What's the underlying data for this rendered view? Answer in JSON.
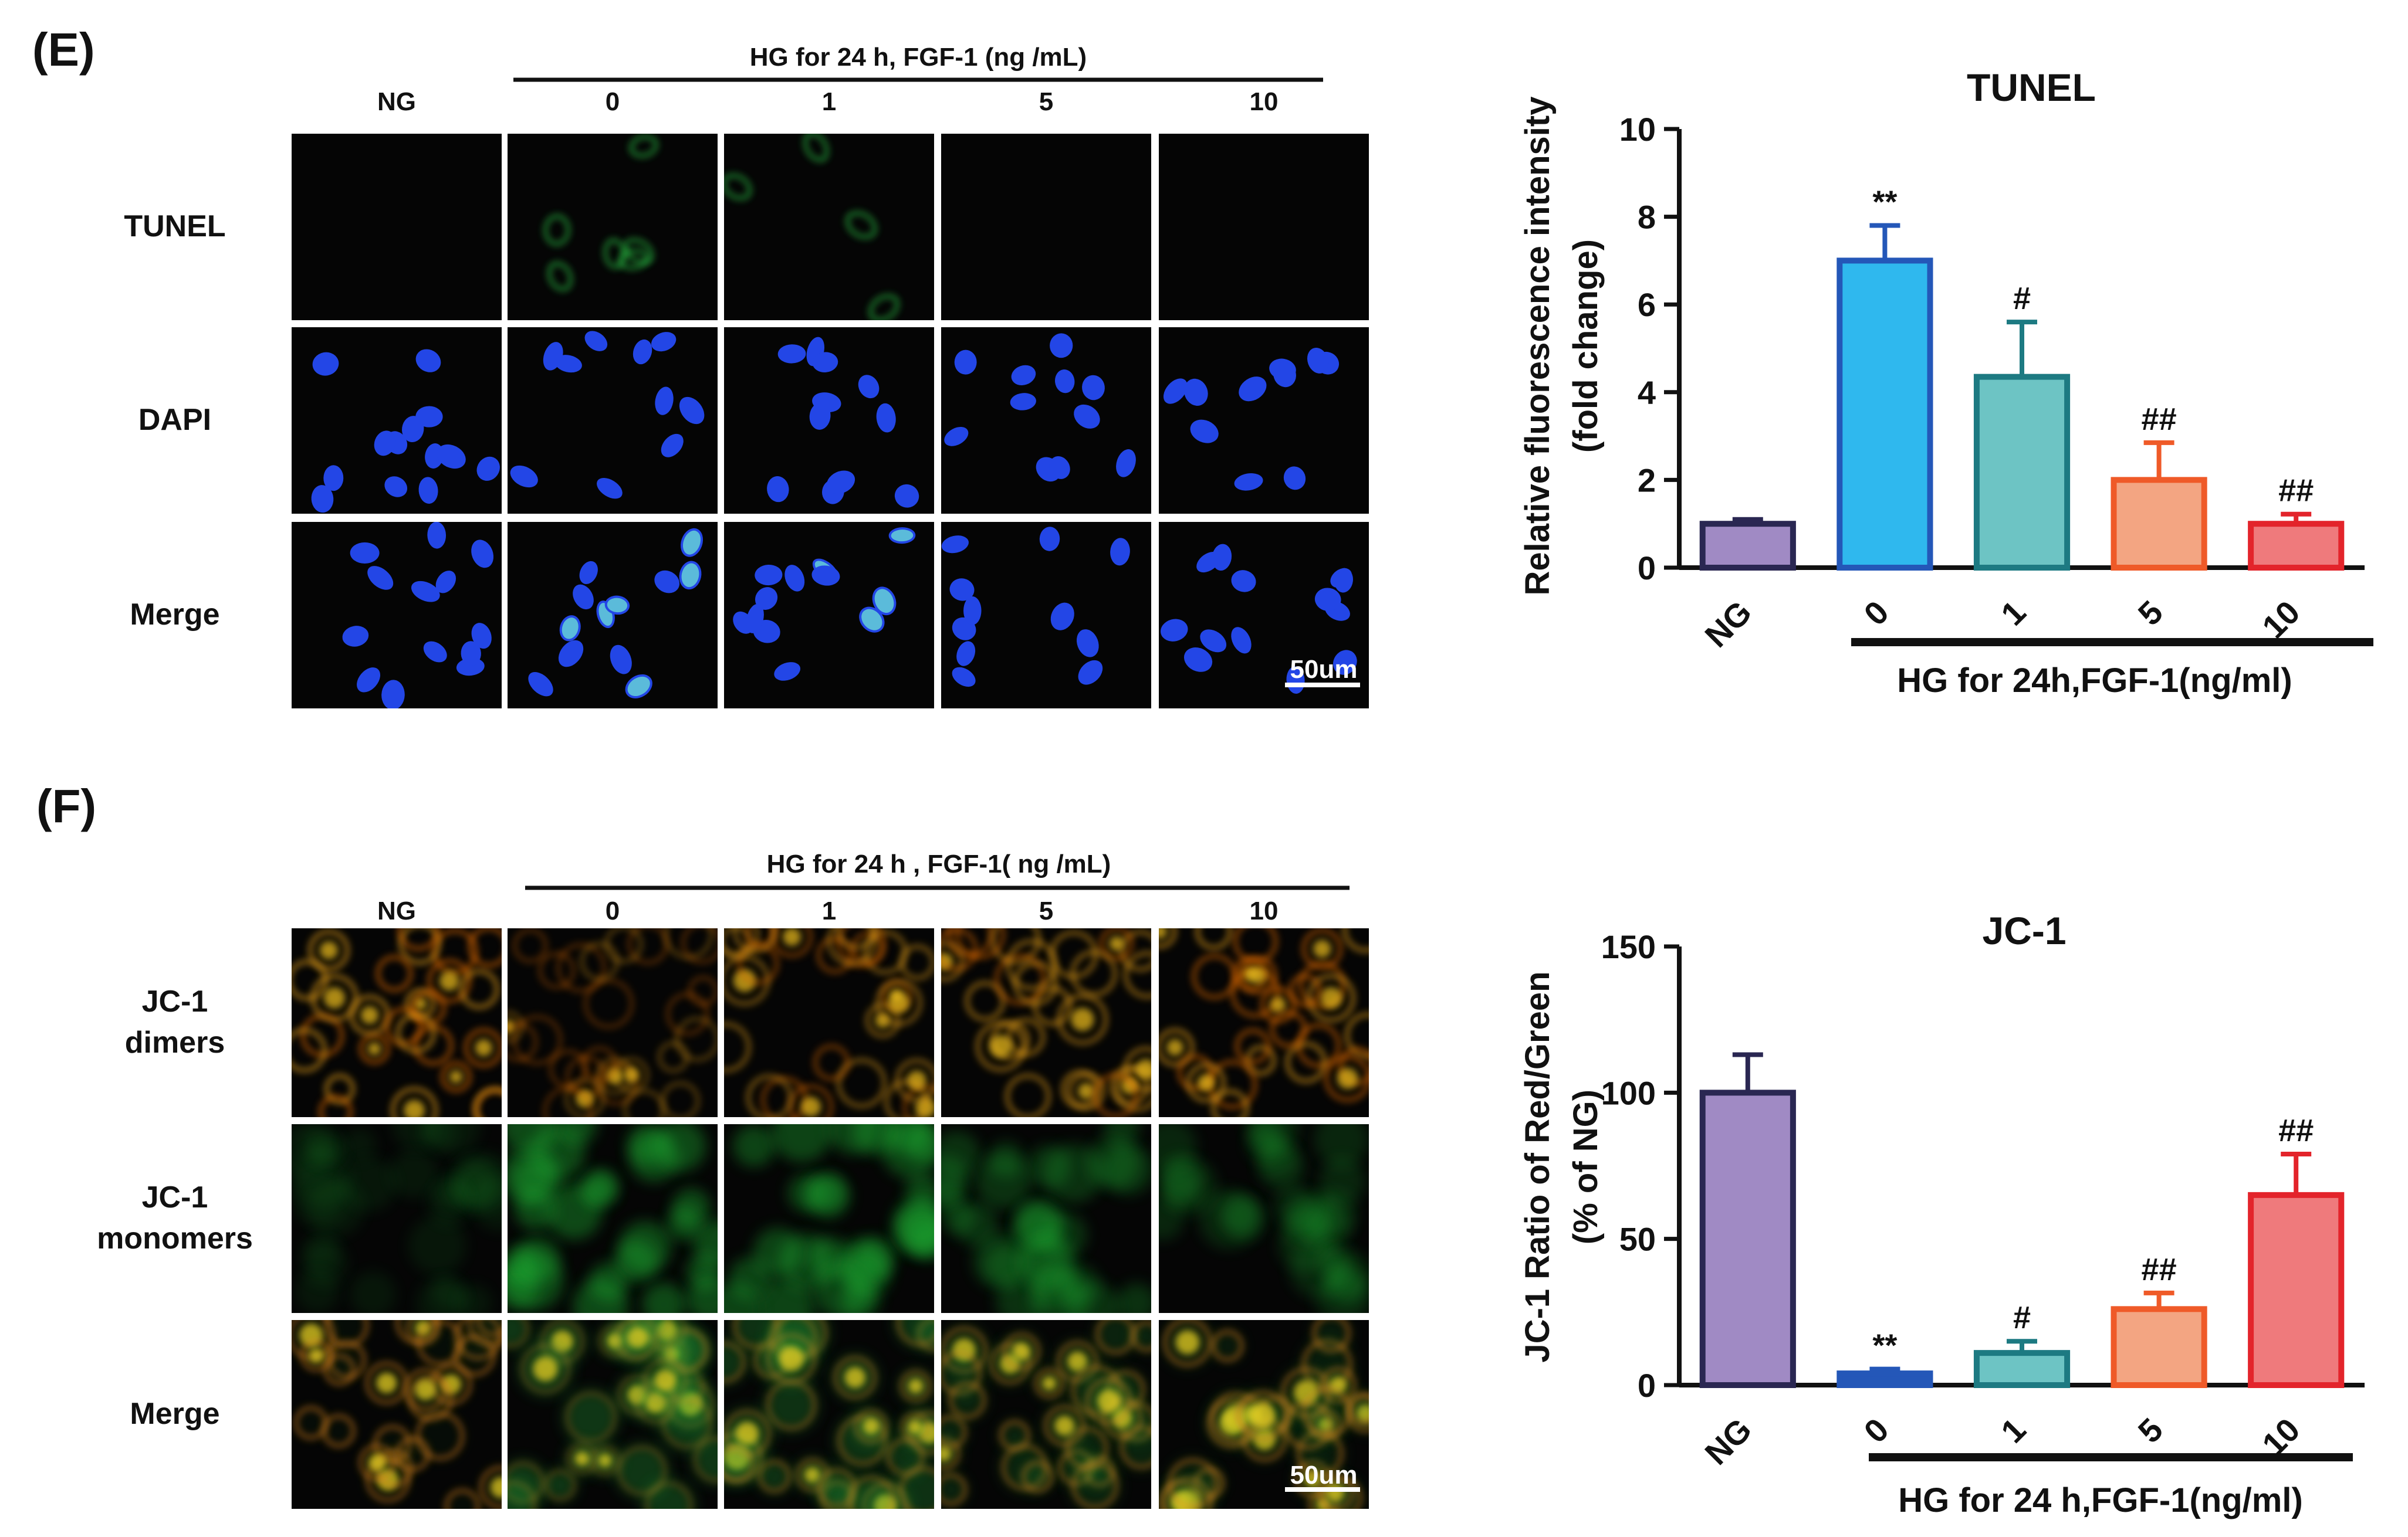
{
  "panels": [
    {
      "letter": "(E)",
      "header": "HG for 24 h,  FGF-1  (ng /mL)",
      "columns": [
        "NG",
        "0",
        "1",
        "5",
        "10"
      ],
      "rows": [
        "TUNEL",
        "DAPI",
        "Merge"
      ],
      "scale_bar": "50um",
      "stain_colors": {
        "TUNEL": "#1faa3c",
        "DAPI": "#2a48e0",
        "Merge": "#2a48e0"
      }
    },
    {
      "letter": "(F)",
      "header": "HG for 24 h ,  FGF-1( ng /mL)",
      "columns": [
        "NG",
        "0",
        "1",
        "5",
        "10"
      ],
      "rows": [
        "JC-1\ndimers",
        "JC-1\nmonomers",
        "Merge"
      ],
      "scale_bar": "50um",
      "stain_colors": {
        "dimers": "#e07a12",
        "monomers": "#1e9a2c",
        "Merge": "#d8b014"
      }
    }
  ],
  "chart_data": [
    {
      "type": "bar",
      "title": "TUNEL",
      "ylabel": "Relative fluorescence intensity\n(fold change)",
      "xlabel": "HG for 24h,FGF-1(ng/ml)",
      "categories": [
        "NG",
        "0",
        "1",
        "5",
        "10"
      ],
      "values": [
        1.0,
        7.0,
        4.35,
        2.0,
        1.0
      ],
      "errors": [
        0.1,
        0.8,
        1.25,
        0.85,
        0.22
      ],
      "annotations": [
        "",
        "**",
        "#",
        "##",
        "##"
      ],
      "ylim": [
        0,
        10
      ],
      "yticks": [
        0,
        2,
        4,
        6,
        8,
        10
      ],
      "bar_fill": [
        "#a08ac4",
        "#2fb8ee",
        "#6dc4c4",
        "#f3a582",
        "#ef7a7c"
      ],
      "bar_edge": [
        "#2a2752",
        "#2457b8",
        "#1d7a82",
        "#ef5a28",
        "#e3242b"
      ]
    },
    {
      "type": "bar",
      "title": "JC-1",
      "ylabel": "JC-1 Ratio of Red/Green\n(% of NG)",
      "xlabel": "HG for 24 h,FGF-1(ng/ml)",
      "categories": [
        "NG",
        "0",
        "1",
        "5",
        "10"
      ],
      "values": [
        100,
        4,
        11,
        26,
        65
      ],
      "errors": [
        13,
        1.5,
        4,
        5.5,
        14
      ],
      "annotations": [
        "",
        "**",
        "#",
        "##",
        "##"
      ],
      "ylim": [
        0,
        150
      ],
      "yticks": [
        0,
        50,
        100,
        150
      ],
      "bar_fill": [
        "#a08ac4",
        "#2457b8",
        "#6dc4c4",
        "#f3a582",
        "#ef7a7c"
      ],
      "bar_edge": [
        "#2a2752",
        "#2457b8",
        "#1d7a82",
        "#ef5a28",
        "#e3242b"
      ]
    }
  ]
}
